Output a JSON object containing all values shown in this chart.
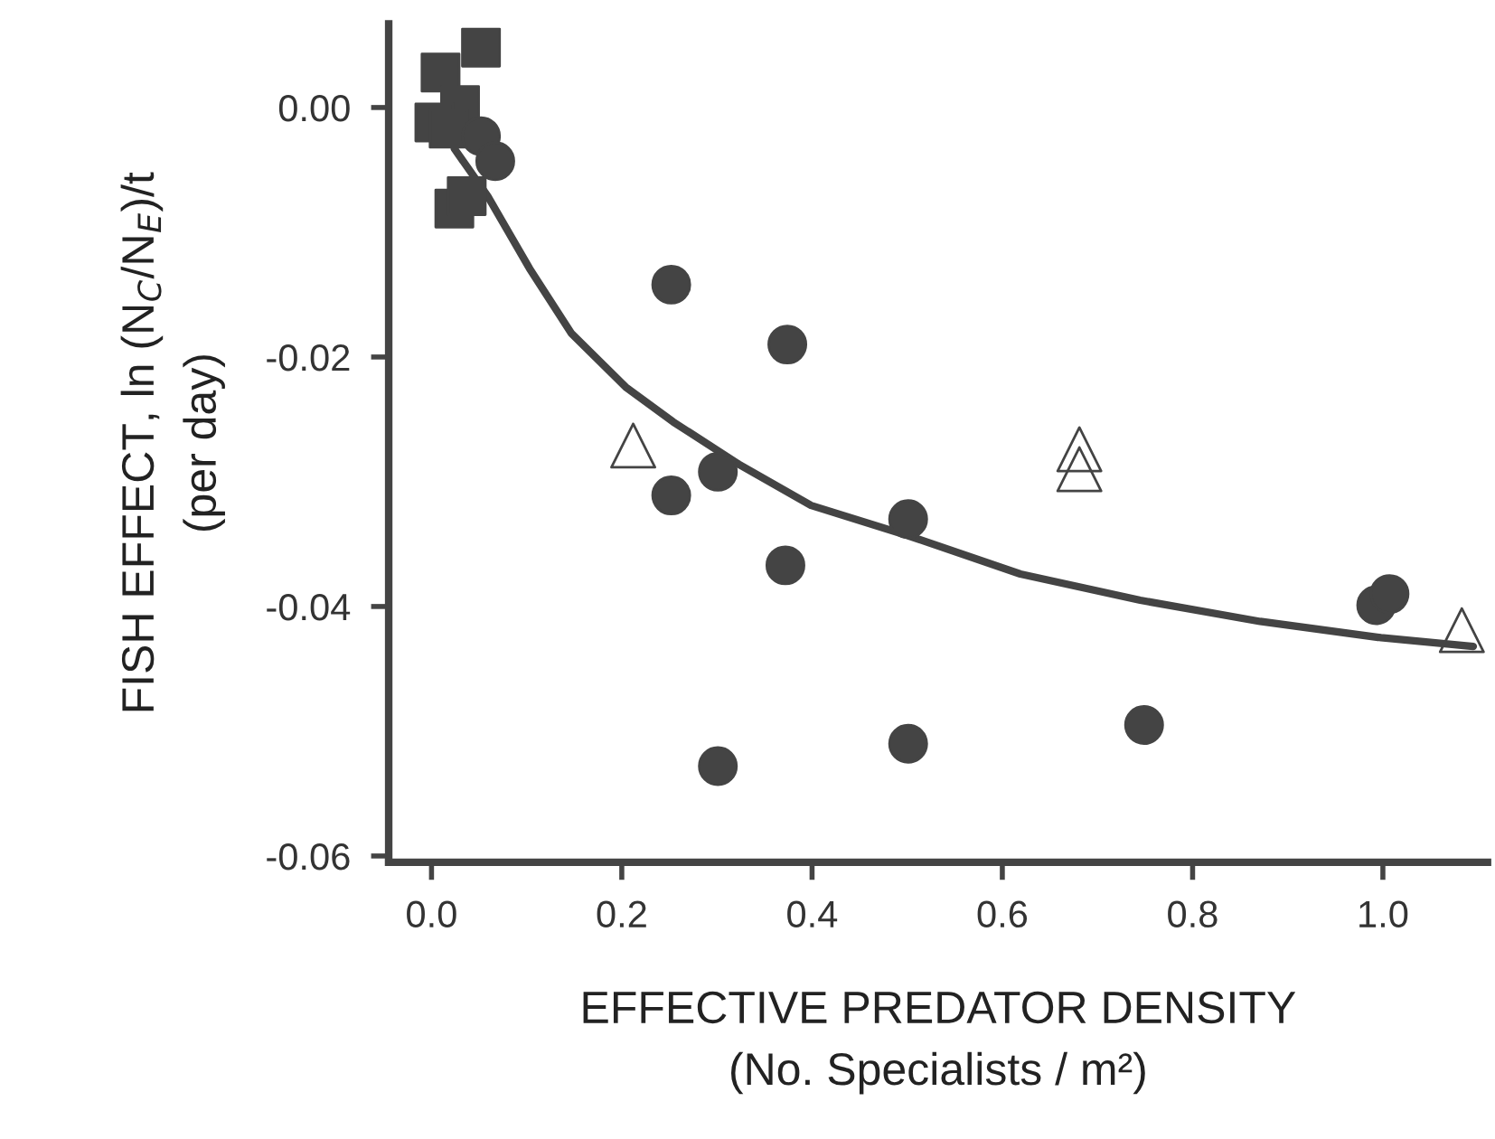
{
  "chart_data": {
    "type": "scatter",
    "xlabel": "EFFECTIVE PREDATOR DENSITY\n(No. Specialists / m²)",
    "ylabel": "FISH EFFECT, ln (N$_{C}$/N$_{E}$)/t\n(per day)",
    "xlim": [
      -0.045,
      1.11
    ],
    "ylim": [
      -0.0605,
      0.0067
    ],
    "xticks": [
      {
        "value": 0,
        "label": "0.0"
      },
      0.2,
      0.4,
      0.6,
      0.8,
      {
        "value": 1,
        "label": "1.0"
      }
    ],
    "yticks": [
      {
        "value": 0,
        "label": "0.00"
      },
      {
        "value": -0.02,
        "label": "-0.02"
      },
      {
        "value": -0.04,
        "label": "-0.04"
      },
      {
        "value": -0.06,
        "label": "-0.06"
      }
    ],
    "grid": false,
    "legend": false,
    "series": [
      {
        "marker": "square",
        "color": "#444444",
        "x": [
          0.052,
          0.0095,
          0.03,
          0.003,
          0.018,
          0.024,
          0.037
        ],
        "values": [
          0.0048,
          0.0028,
          0.0002,
          -0.0012,
          -0.0017,
          -0.0081,
          -0.0071
        ]
      },
      {
        "marker": "circle",
        "color": "#444444",
        "x": [
          0.052,
          0.067,
          0.252,
          0.252,
          0.301,
          0.301,
          0.374,
          0.372,
          0.501,
          0.501,
          0.749,
          0.993,
          1.007
        ],
        "values": [
          -0.0023,
          -0.0043,
          -0.0142,
          -0.0311,
          -0.0292,
          -0.0528,
          -0.019,
          -0.0367,
          -0.033,
          -0.051,
          -0.0495,
          -0.0399,
          -0.039
        ]
      },
      {
        "marker": "triangle",
        "color": "#444444",
        "x": [
          0.212,
          0.681,
          0.681,
          1.083
        ],
        "values": [
          -0.0271,
          -0.0274,
          -0.029,
          -0.0419
        ]
      },
      {
        "type": "line",
        "marker": "none",
        "line_style": "solid",
        "color": "#444444",
        "x": [
          0.024,
          0.059,
          0.103,
          0.147,
          0.204,
          0.254,
          0.323,
          0.399,
          0.5,
          0.619,
          0.745,
          0.871,
          0.998,
          1.095
        ],
        "values": [
          -0.0033,
          -0.0071,
          -0.0129,
          -0.0181,
          -0.0224,
          -0.0252,
          -0.0286,
          -0.0319,
          -0.0343,
          -0.0374,
          -0.0395,
          -0.0412,
          -0.0425,
          -0.0432
        ]
      }
    ]
  }
}
